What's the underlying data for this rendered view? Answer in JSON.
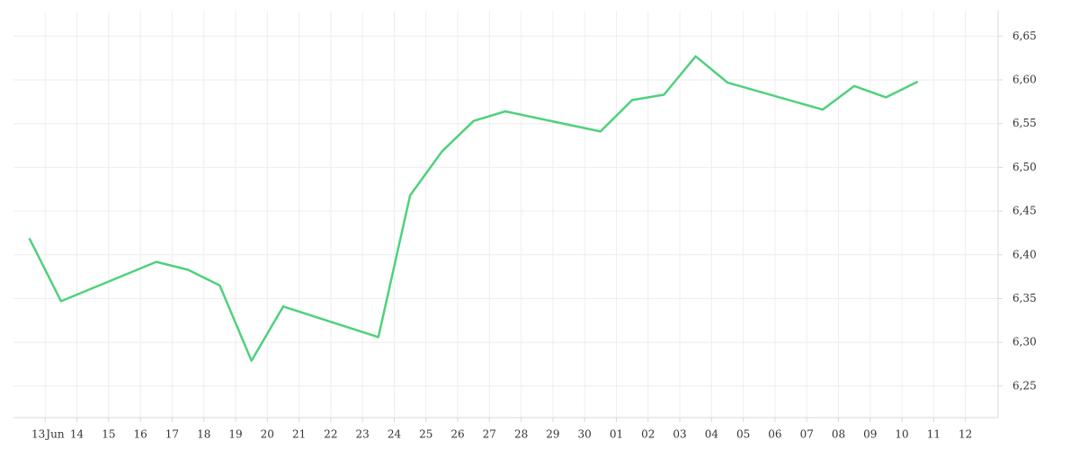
{
  "chart_data": {
    "type": "line",
    "month_label": "Jun",
    "x": [
      -0.5,
      0.5,
      3.5,
      4.5,
      5.5,
      6.5,
      7.5,
      10.5,
      11.5,
      12.5,
      13.5,
      14.5,
      17.5,
      18.5,
      19.5,
      20.5,
      21.5,
      24.5,
      25.5,
      26.5,
      27.5
    ],
    "series": [
      {
        "color": "#4fd17c",
        "values": [
          6.419,
          6.347,
          6.392,
          6.383,
          6.365,
          6.279,
          6.341,
          6.306,
          6.468,
          6.518,
          6.553,
          6.564,
          6.541,
          6.577,
          6.583,
          6.627,
          6.597,
          6.566,
          6.593,
          6.58,
          6.598
        ]
      }
    ],
    "xlim": [
      -1,
      30.03
    ],
    "xticks": [
      {
        "value": 0,
        "label": "13"
      },
      {
        "value": 1,
        "label": "14"
      },
      {
        "value": 2,
        "label": "15"
      },
      {
        "value": 3,
        "label": "16"
      },
      {
        "value": 4,
        "label": "17"
      },
      {
        "value": 5,
        "label": "18"
      },
      {
        "value": 6,
        "label": "19"
      },
      {
        "value": 7,
        "label": "20"
      },
      {
        "value": 8,
        "label": "21"
      },
      {
        "value": 9,
        "label": "22"
      },
      {
        "value": 10,
        "label": "23"
      },
      {
        "value": 11,
        "label": "24"
      },
      {
        "value": 12,
        "label": "25"
      },
      {
        "value": 13,
        "label": "26"
      },
      {
        "value": 14,
        "label": "27"
      },
      {
        "value": 15,
        "label": "28"
      },
      {
        "value": 16,
        "label": "29"
      },
      {
        "value": 17,
        "label": "30"
      },
      {
        "value": 18,
        "label": "01"
      },
      {
        "value": 19,
        "label": "02"
      },
      {
        "value": 20,
        "label": "03"
      },
      {
        "value": 21,
        "label": "04"
      },
      {
        "value": 22,
        "label": "05"
      },
      {
        "value": 23,
        "label": "06"
      },
      {
        "value": 24,
        "label": "07"
      },
      {
        "value": 25,
        "label": "08"
      },
      {
        "value": 26,
        "label": "09"
      },
      {
        "value": 27,
        "label": "10"
      },
      {
        "value": 28,
        "label": "11"
      },
      {
        "value": 29,
        "label": "12"
      }
    ],
    "ylim": [
      6.214,
      6.679
    ],
    "yticks": [
      {
        "value": 6.25,
        "label": "6,25"
      },
      {
        "value": 6.3,
        "label": "6,30"
      },
      {
        "value": 6.35,
        "label": "6,35"
      },
      {
        "value": 6.4,
        "label": "6,40"
      },
      {
        "value": 6.45,
        "label": "6,45"
      },
      {
        "value": 6.5,
        "label": "6,50"
      },
      {
        "value": 6.55,
        "label": "6,55"
      },
      {
        "value": 6.6,
        "label": "6,60"
      },
      {
        "value": 6.65,
        "label": "6,65"
      }
    ],
    "grid": true
  }
}
